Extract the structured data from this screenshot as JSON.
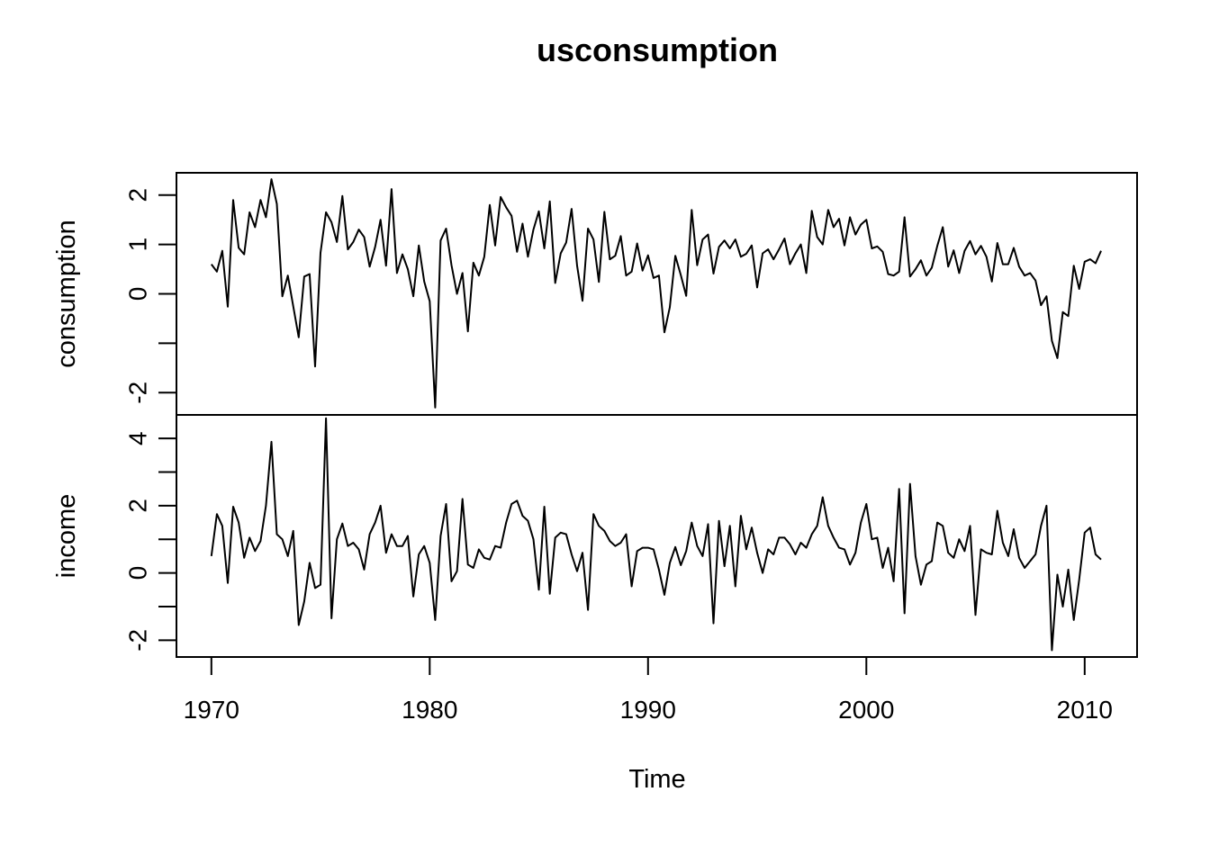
{
  "chart_data": {
    "type": "line",
    "title": "usconsumption",
    "xlabel": "Time",
    "x_ticks": [
      1970,
      1980,
      1990,
      2000,
      2010
    ],
    "x_tick_labels": [
      "1970",
      "1980",
      "1990",
      "2000",
      "2010"
    ],
    "x_start": 1970.0,
    "x_step": 0.25,
    "xlim": [
      1968.4,
      2012.4
    ],
    "grid": false,
    "legend": "none",
    "series": [
      {
        "name": "consumption",
        "ylim": [
          -2.45,
          2.45
        ],
        "y_ticks": [
          -2,
          -1,
          0,
          1,
          2
        ],
        "y_tick_labels": [
          "-2",
          "",
          "0",
          "1",
          "2"
        ],
        "values": [
          0.6,
          0.45,
          0.87,
          -0.26,
          1.9,
          0.93,
          0.8,
          1.65,
          1.35,
          1.9,
          1.55,
          2.32,
          1.82,
          -0.05,
          0.37,
          -0.25,
          -0.88,
          0.35,
          0.4,
          -1.47,
          0.83,
          1.65,
          1.45,
          1.05,
          1.98,
          0.9,
          1.05,
          1.3,
          1.15,
          0.55,
          0.95,
          1.5,
          0.57,
          2.12,
          0.42,
          0.8,
          0.5,
          -0.05,
          0.98,
          0.25,
          -0.15,
          -2.3,
          1.08,
          1.32,
          0.58,
          0.0,
          0.42,
          -0.76,
          0.63,
          0.37,
          0.75,
          1.8,
          0.98,
          1.96,
          1.75,
          1.58,
          0.85,
          1.42,
          0.75,
          1.3,
          1.67,
          0.92,
          1.87,
          0.22,
          0.82,
          1.04,
          1.72,
          0.57,
          -0.14,
          1.32,
          1.1,
          0.24,
          1.66,
          0.7,
          0.77,
          1.17,
          0.37,
          0.45,
          1.02,
          0.47,
          0.78,
          0.32,
          0.37,
          -0.78,
          -0.27,
          0.77,
          0.38,
          -0.04,
          1.7,
          0.58,
          1.1,
          1.2,
          0.41,
          0.95,
          1.08,
          0.92,
          1.1,
          0.75,
          0.81,
          0.98,
          0.13,
          0.82,
          0.9,
          0.7,
          0.9,
          1.12,
          0.6,
          0.82,
          1.0,
          0.42,
          1.68,
          1.15,
          1.0,
          1.7,
          1.35,
          1.52,
          0.98,
          1.55,
          1.2,
          1.4,
          1.5,
          0.92,
          0.96,
          0.85,
          0.4,
          0.37,
          0.45,
          1.55,
          0.35,
          0.5,
          0.68,
          0.37,
          0.53,
          0.97,
          1.35,
          0.55,
          0.88,
          0.42,
          0.87,
          1.07,
          0.8,
          0.97,
          0.75,
          0.25,
          1.03,
          0.6,
          0.6,
          0.93,
          0.55,
          0.37,
          0.42,
          0.27,
          -0.23,
          -0.05,
          -0.95,
          -1.3,
          -0.37,
          -0.45,
          0.57,
          0.1,
          0.65,
          0.7,
          0.62,
          0.87
        ]
      },
      {
        "name": "income",
        "ylim": [
          -2.5,
          4.7
        ],
        "y_ticks": [
          -2,
          -1,
          0,
          1,
          2,
          3,
          4
        ],
        "y_tick_labels": [
          "-2",
          "",
          "0",
          "",
          "2",
          "",
          "4"
        ],
        "values": [
          0.5,
          1.75,
          1.4,
          -0.3,
          1.97,
          1.5,
          0.45,
          1.05,
          0.65,
          0.95,
          2.0,
          3.9,
          1.15,
          1.0,
          0.5,
          1.25,
          -1.55,
          -0.85,
          0.3,
          -0.45,
          -0.35,
          4.6,
          -1.35,
          1.0,
          1.47,
          0.8,
          0.9,
          0.7,
          0.1,
          1.15,
          1.5,
          2.0,
          0.6,
          1.15,
          0.8,
          0.8,
          1.1,
          -0.7,
          0.55,
          0.8,
          0.3,
          -1.4,
          1.1,
          2.05,
          -0.25,
          0.05,
          2.2,
          0.25,
          0.15,
          0.7,
          0.45,
          0.4,
          0.8,
          0.75,
          1.5,
          2.05,
          2.15,
          1.7,
          1.55,
          1.0,
          -0.5,
          1.97,
          -0.62,
          1.05,
          1.2,
          1.15,
          0.55,
          0.05,
          0.6,
          -1.1,
          1.75,
          1.4,
          1.25,
          0.95,
          0.8,
          0.9,
          1.15,
          -0.4,
          0.65,
          0.75,
          0.75,
          0.7,
          0.1,
          -0.65,
          0.3,
          0.77,
          0.23,
          0.65,
          1.5,
          0.8,
          0.5,
          1.45,
          -1.5,
          1.55,
          0.2,
          1.4,
          -0.4,
          1.7,
          0.7,
          1.35,
          0.6,
          0.0,
          0.7,
          0.55,
          1.05,
          1.05,
          0.85,
          0.55,
          0.9,
          0.75,
          1.15,
          1.4,
          2.25,
          1.4,
          1.05,
          0.75,
          0.7,
          0.25,
          0.6,
          1.5,
          2.05,
          1.0,
          1.05,
          0.15,
          0.75,
          -0.25,
          2.5,
          -1.2,
          2.65,
          0.5,
          -0.35,
          0.25,
          0.35,
          1.5,
          1.4,
          0.6,
          0.45,
          1.0,
          0.65,
          1.4,
          -1.25,
          0.7,
          0.6,
          0.55,
          1.85,
          0.9,
          0.5,
          1.3,
          0.45,
          0.15,
          0.35,
          0.55,
          1.4,
          2.0,
          -2.3,
          -0.05,
          -1.0,
          0.1,
          -1.4,
          -0.2,
          1.2,
          1.35,
          0.55,
          0.4
        ]
      }
    ]
  }
}
